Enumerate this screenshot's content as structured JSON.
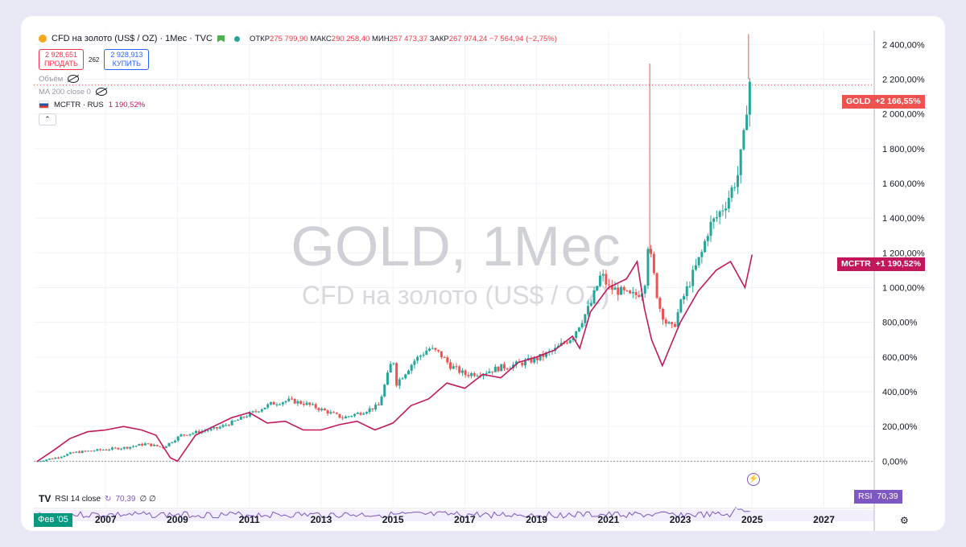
{
  "header": {
    "symbol_title": "CFD на золото (US$ / OZ) · 1Мес · TVC",
    "open_label": "ОТКР",
    "open_value": "275 799,90",
    "high_label": "МАКС",
    "high_value": "290 258,40",
    "low_label": "МИН",
    "low_value": "257 473,37",
    "close_label": "ЗАКР",
    "close_value": "267 974,24",
    "change": "−7 564,94 (−2,75%)"
  },
  "trade": {
    "sell_price": "2 928,651",
    "sell_label": "ПРОДАТЬ",
    "spread": "262",
    "buy_price": "2 928,913",
    "buy_label": "КУПИТЬ"
  },
  "indicators": {
    "volume_label": "Объём",
    "ma_label": "MA 200 close 0",
    "compare_label": "MCFTR · RUS",
    "compare_value": "1 190,52%",
    "rsi_label": "RSI 14 close",
    "rsi_value": "70,39",
    "rsi_extra": "∅ ∅"
  },
  "watermark": {
    "line1": "GOLD, 1Мес",
    "line2": "CFD на золото (US$ / OZ)"
  },
  "badges": {
    "gold_name": "GOLD",
    "gold_value": "+2 166,55%",
    "mcftr_name": "MCFTR",
    "mcftr_value": "+1 190,52%",
    "rsi_name": "RSI",
    "rsi_value": "70,39",
    "start_date": "Фев '05"
  },
  "colors": {
    "up": "#26a69a",
    "down": "#ef5350",
    "mcftr": "#c2185b",
    "rsi": "#7e57c2",
    "gold_badge": "#ef5350"
  },
  "chart_data": {
    "type": "line",
    "y_axis": {
      "unit": "%",
      "ticks": [
        "0,00%",
        "200,00%",
        "400,00%",
        "600,00%",
        "800,00%",
        "1 000,00%",
        "1 200,00%",
        "1 400,00%",
        "1 600,00%",
        "1 800,00%",
        "2 000,00%",
        "2 200,00%",
        "2 400,00%"
      ],
      "ylim": [
        -40,
        2480
      ]
    },
    "x_axis": {
      "ticks": [
        "2007",
        "2009",
        "2011",
        "2013",
        "2015",
        "2017",
        "2019",
        "2021",
        "2023",
        "2025",
        "2027"
      ],
      "xlim": [
        2005.0,
        2028.4
      ]
    },
    "series": [
      {
        "name": "GOLD",
        "style": "candlestick",
        "x": [
          2005.1,
          2005.6,
          2006.1,
          2006.6,
          2007.1,
          2007.6,
          2008.1,
          2008.6,
          2009.1,
          2009.6,
          2010.1,
          2010.6,
          2011.1,
          2011.6,
          2012.1,
          2012.6,
          2013.1,
          2013.6,
          2014.1,
          2014.6,
          2015.0,
          2015.1,
          2015.3,
          2015.6,
          2016.0,
          2016.3,
          2016.6,
          2017.0,
          2017.5,
          2018.0,
          2018.5,
          2019.0,
          2019.5,
          2020.0,
          2020.5,
          2020.8,
          2021.0,
          2021.3,
          2021.6,
          2021.8,
          2022.0,
          2022.1,
          2022.2,
          2022.4,
          2022.6,
          2022.8,
          2023.0,
          2023.3,
          2023.6,
          2023.8,
          2024.0,
          2024.3,
          2024.6,
          2024.8,
          2024.9,
          2025.0
        ],
        "y": [
          0,
          20,
          50,
          60,
          70,
          80,
          100,
          80,
          150,
          170,
          190,
          230,
          280,
          330,
          350,
          330,
          290,
          250,
          280,
          320,
          600,
          450,
          500,
          580,
          650,
          620,
          550,
          500,
          510,
          540,
          560,
          590,
          640,
          720,
          900,
          1080,
          1000,
          980,
          950,
          960,
          1000,
          1250,
          1150,
          900,
          800,
          760,
          900,
          1050,
          1200,
          1350,
          1400,
          1500,
          1650,
          1900,
          2200,
          2166
        ]
      },
      {
        "name": "MCFTR",
        "style": "line",
        "x": [
          2005.1,
          2005.6,
          2006.0,
          2006.5,
          2007.0,
          2007.5,
          2008.0,
          2008.4,
          2008.8,
          2009.0,
          2009.5,
          2010.0,
          2010.5,
          2011.0,
          2011.5,
          2012.0,
          2012.5,
          2013.0,
          2013.5,
          2014.0,
          2014.5,
          2015.0,
          2015.5,
          2016.0,
          2016.5,
          2017.0,
          2017.5,
          2018.0,
          2018.5,
          2019.0,
          2019.5,
          2020.0,
          2020.2,
          2020.5,
          2021.0,
          2021.5,
          2021.8,
          2022.0,
          2022.2,
          2022.5,
          2022.7,
          2023.0,
          2023.5,
          2024.0,
          2024.4,
          2024.8,
          2025.0
        ],
        "y": [
          0,
          70,
          130,
          170,
          180,
          200,
          180,
          150,
          20,
          0,
          150,
          200,
          250,
          280,
          220,
          230,
          180,
          180,
          210,
          230,
          180,
          220,
          320,
          360,
          450,
          420,
          500,
          480,
          570,
          600,
          640,
          720,
          650,
          860,
          1000,
          1050,
          1150,
          880,
          700,
          550,
          650,
          800,
          980,
          1100,
          1150,
          1000,
          1190
        ]
      }
    ],
    "rsi": {
      "label": "RSI 14 close",
      "last": 70.39
    }
  }
}
